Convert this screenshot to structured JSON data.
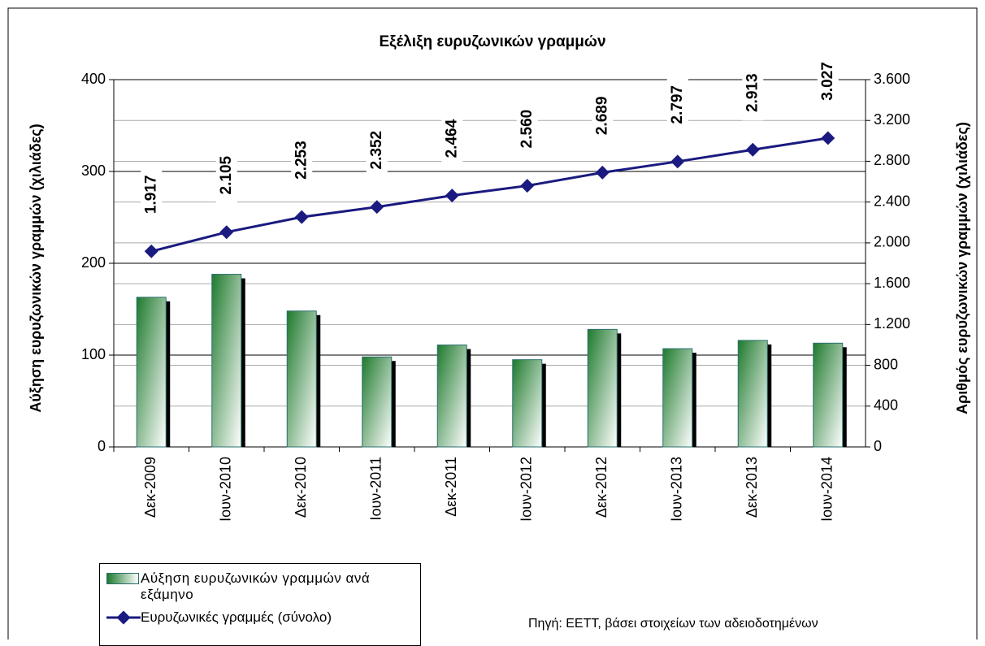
{
  "chart_data": {
    "type": "bar_line",
    "title": "Εξέλιξη ευρυζωνικών γραμμών",
    "y_label": "Αύξηση ευρυζωνικών γραμμών (χιλιάδες)",
    "y2_label": "Αριθμός ευρυζωνικών γραμμών (χιλιάδες)",
    "source": "Πηγή: ΕΕΤΤ, βάσει στοιχείων των αδειοδοτημένων",
    "categories": [
      "Δεκ-2009",
      "Ιουν-2010",
      "Δεκ-2010",
      "Ιουν-2011",
      "Δεκ-2011",
      "Ιουν-2012",
      "Δεκ-2012",
      "Ιουν-2013",
      "Δεκ-2013",
      "Ιουν-2014"
    ],
    "series": [
      {
        "name": "Αύξηση ευρυζωνικών γραμμών ανά εξάμηνο",
        "type": "bar",
        "color": "#2e8b3a",
        "values": [
          163,
          188,
          148,
          98,
          111,
          95,
          128,
          107,
          116,
          113
        ]
      },
      {
        "name": "Ευρυζωνικές γραμμές (σύνολο)",
        "type": "line",
        "axis": "y2",
        "color": "#1a1a80",
        "values": [
          1917,
          2105,
          2253,
          2352,
          2464,
          2560,
          2689,
          2797,
          2913,
          3027
        ],
        "value_labels": [
          "1.917",
          "2.105",
          "2.253",
          "2.352",
          "2.464",
          "2.560",
          "2.689",
          "2.797",
          "2.913",
          "3.027"
        ]
      }
    ],
    "ylim": [
      0,
      400
    ],
    "yticks": [
      0,
      100,
      200,
      300,
      400
    ],
    "y2lim": [
      0,
      3600
    ],
    "y2ticks": [
      0,
      400,
      800,
      {
        "value": 1200,
        "label": "1.200"
      },
      {
        "value": 1600,
        "label": "1.600"
      },
      {
        "value": 2000,
        "label": "2.000"
      },
      {
        "value": 2400,
        "label": "2.400"
      },
      {
        "value": 2800,
        "label": "2.800"
      },
      {
        "value": 3200,
        "label": "3.200"
      },
      {
        "value": 3600,
        "label": "3.600"
      }
    ],
    "grid": true
  }
}
